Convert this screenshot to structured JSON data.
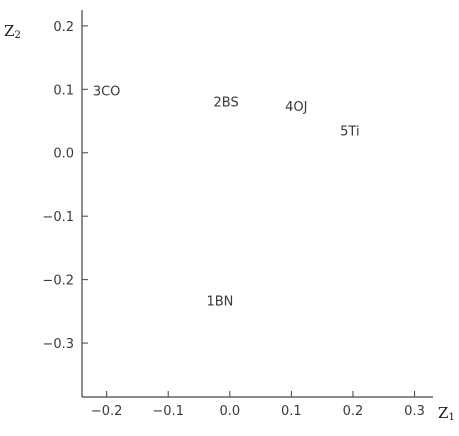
{
  "chart_data": {
    "type": "scatter",
    "title": "",
    "xlabel": "Z1",
    "ylabel": "Z2",
    "xlim": [
      -0.24,
      0.33
    ],
    "ylim": [
      -0.385,
      0.225
    ],
    "x_ticks": [
      -0.2,
      -0.1,
      0.0,
      0.1,
      0.2,
      0.3
    ],
    "x_tick_labels": [
      "−0.2",
      "−0.1",
      "0.0",
      "0.1",
      "0.2",
      "0.3"
    ],
    "y_ticks": [
      0.2,
      0.1,
      0.0,
      -0.1,
      -0.2,
      -0.3
    ],
    "y_tick_labels": [
      "0.2",
      "0.1",
      "0.0",
      "−0.1",
      "−0.2",
      "−0.3"
    ],
    "grid": false,
    "points": [
      {
        "label": "3CO",
        "x": -0.2,
        "y": 0.098
      },
      {
        "label": "2BS",
        "x": -0.006,
        "y": 0.081
      },
      {
        "label": "4OJ",
        "x": 0.108,
        "y": 0.074
      },
      {
        "label": "5Ti",
        "x": 0.195,
        "y": 0.035
      },
      {
        "label": "1BN",
        "x": -0.016,
        "y": -0.233
      }
    ]
  },
  "axis_titles": {
    "x_main": "Z",
    "x_sub": "1",
    "y_main": "Z",
    "y_sub": "2"
  }
}
